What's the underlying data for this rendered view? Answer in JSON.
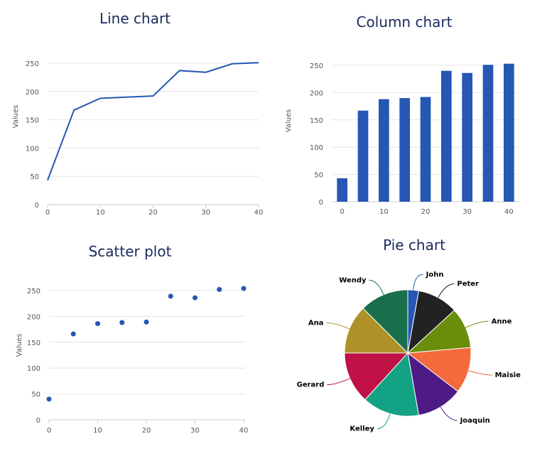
{
  "chart_data": [
    {
      "type": "line",
      "title": "Line chart",
      "ylabel": "Values",
      "xlabel": "",
      "x": [
        0,
        5,
        10,
        15,
        20,
        25,
        30,
        35,
        40
      ],
      "values": [
        43,
        167,
        188,
        190,
        192,
        237,
        234,
        249,
        251
      ],
      "xticks": [
        0,
        10,
        20,
        30,
        40
      ],
      "yticks": [
        0,
        50,
        100,
        150,
        200,
        250
      ],
      "ylim": [
        0,
        250
      ],
      "xlim": [
        0,
        40
      ],
      "color": "#2557b3"
    },
    {
      "type": "bar",
      "title": "Column chart",
      "ylabel": "Values",
      "xlabel": "",
      "x": [
        0,
        5,
        10,
        15,
        20,
        25,
        30,
        35,
        40
      ],
      "values": [
        43,
        167,
        188,
        190,
        192,
        240,
        236,
        251,
        253
      ],
      "xticks": [
        0,
        10,
        20,
        30,
        40
      ],
      "yticks": [
        0,
        50,
        100,
        150,
        200,
        250
      ],
      "ylim": [
        0,
        250
      ],
      "color": "#2557b3"
    },
    {
      "type": "scatter",
      "title": "Scatter plot",
      "ylabel": "Values",
      "xlabel": "",
      "x": [
        0,
        5,
        10,
        15,
        20,
        25,
        30,
        35,
        40
      ],
      "values": [
        40,
        166,
        186,
        188,
        189,
        239,
        236,
        252,
        254
      ],
      "xticks": [
        0,
        10,
        20,
        30,
        40
      ],
      "yticks": [
        0,
        50,
        100,
        150,
        200,
        250
      ],
      "ylim": [
        0,
        250
      ],
      "color": "#2557b3"
    },
    {
      "type": "pie",
      "title": "Pie chart",
      "labels": [
        "John",
        "Peter",
        "Anne",
        "Maisie",
        "Joaquin",
        "Kelley",
        "Gerard",
        "Ana",
        "Wendy"
      ],
      "values": [
        4,
        15,
        15,
        17,
        17,
        21,
        19,
        18,
        18
      ],
      "colors": [
        "#2557b3",
        "#222222",
        "#6a8e0b",
        "#f46a3b",
        "#4e1a86",
        "#13a384",
        "#bf1146",
        "#ae9127",
        "#196f4c"
      ]
    }
  ]
}
